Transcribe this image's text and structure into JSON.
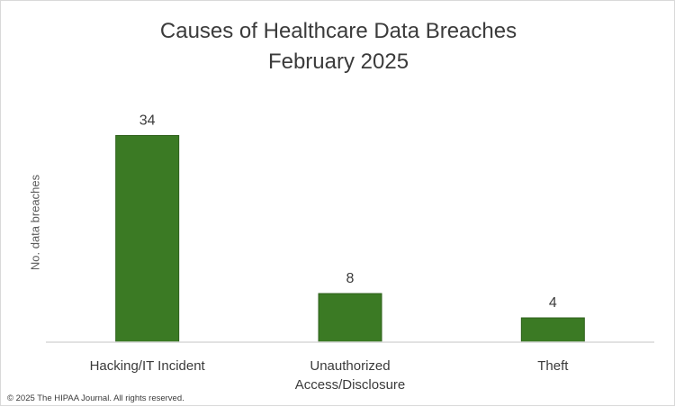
{
  "chart_data": {
    "type": "bar",
    "title": [
      "Causes of Healthcare Data Breaches",
      "February 2025"
    ],
    "ylabel": "No. data breaches",
    "xlabel": "",
    "categories": [
      [
        "Hacking/IT Incident"
      ],
      [
        "Unauthorized",
        "Access/Disclosure"
      ],
      [
        "Theft"
      ]
    ],
    "values": [
      34,
      8,
      4
    ],
    "data_labels": [
      "34",
      "8",
      "4"
    ],
    "ylim": [
      0,
      40
    ],
    "grid": false,
    "legend": "none",
    "bar_color": "#3b7a24",
    "bar_edge_color": "#2f611c"
  },
  "footer": {
    "copyright": "© 2025 The HIPAA Journal. All rights reserved."
  }
}
